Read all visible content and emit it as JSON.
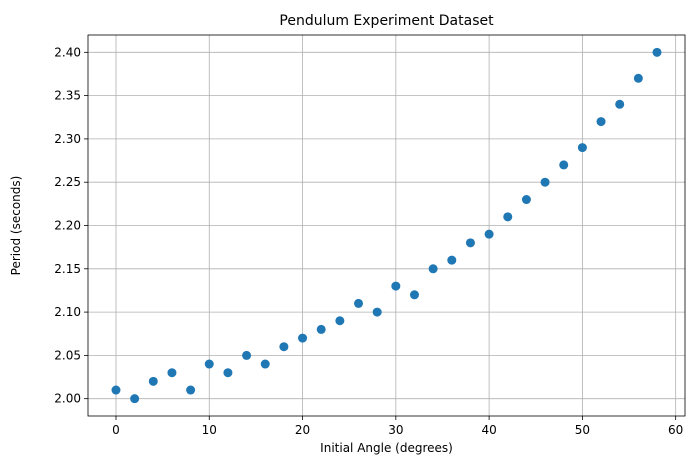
{
  "chart_data": {
    "type": "scatter",
    "title": "Pendulum Experiment Dataset",
    "xlabel": "Initial Angle (degrees)",
    "ylabel": "Period (seconds)",
    "xlim": [
      -3,
      61
    ],
    "ylim": [
      1.98,
      2.42
    ],
    "xticks": [
      0,
      10,
      20,
      30,
      40,
      50,
      60
    ],
    "yticks": [
      2.0,
      2.05,
      2.1,
      2.15,
      2.2,
      2.25,
      2.3,
      2.35,
      2.4
    ],
    "ytick_decimals": 2,
    "grid": true,
    "marker_color": "#1f77b4",
    "series": [
      {
        "x": [
          0,
          2,
          4,
          6,
          8,
          10,
          12,
          14,
          16,
          18,
          20,
          22,
          24,
          26,
          28,
          30,
          32,
          34,
          36,
          38,
          40,
          42,
          44,
          46,
          48,
          50,
          52,
          54,
          56,
          58
        ],
        "y": [
          2.01,
          2.0,
          2.02,
          2.03,
          2.01,
          2.04,
          2.03,
          2.05,
          2.04,
          2.06,
          2.07,
          2.08,
          2.09,
          2.11,
          2.1,
          2.13,
          2.12,
          2.15,
          2.16,
          2.18,
          2.19,
          2.21,
          2.23,
          2.25,
          2.27,
          2.29,
          2.32,
          2.34,
          2.37,
          2.4
        ]
      }
    ]
  }
}
